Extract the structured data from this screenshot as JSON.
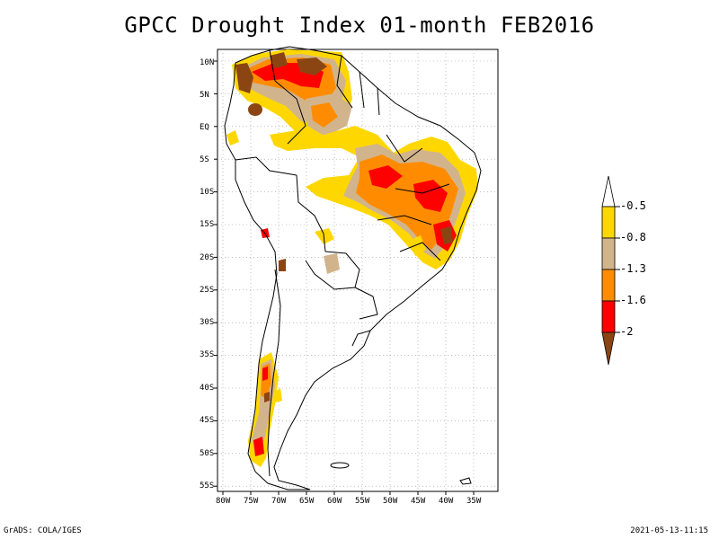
{
  "title": "GPCC Drought Index 01-month FEB2016",
  "map": {
    "lat_labels": [
      "10N",
      "5N",
      "EQ",
      "5S",
      "10S",
      "15S",
      "20S",
      "25S",
      "30S",
      "35S",
      "40S",
      "45S",
      "50S",
      "55S"
    ],
    "lon_labels": [
      "80W",
      "75W",
      "70W",
      "65W",
      "60W",
      "55W",
      "50W",
      "45W",
      "40W",
      "35W"
    ],
    "legend": {
      "thresholds": [
        "-0.5",
        "-0.8",
        "-1.3",
        "-1.6",
        "-2"
      ],
      "colors": [
        "#ffffff",
        "#ffd700",
        "#d2b48c",
        "#ff8c00",
        "#ff0000",
        "#8b4513"
      ]
    },
    "palette": {
      "yellow": "#ffd700",
      "tan": "#d2b48c",
      "orange": "#ff8c00",
      "red": "#ff0000",
      "brown": "#8b4513"
    }
  },
  "footer": {
    "left": "GrADS: COLA/IGES",
    "right": "2021-05-13-11:15"
  }
}
